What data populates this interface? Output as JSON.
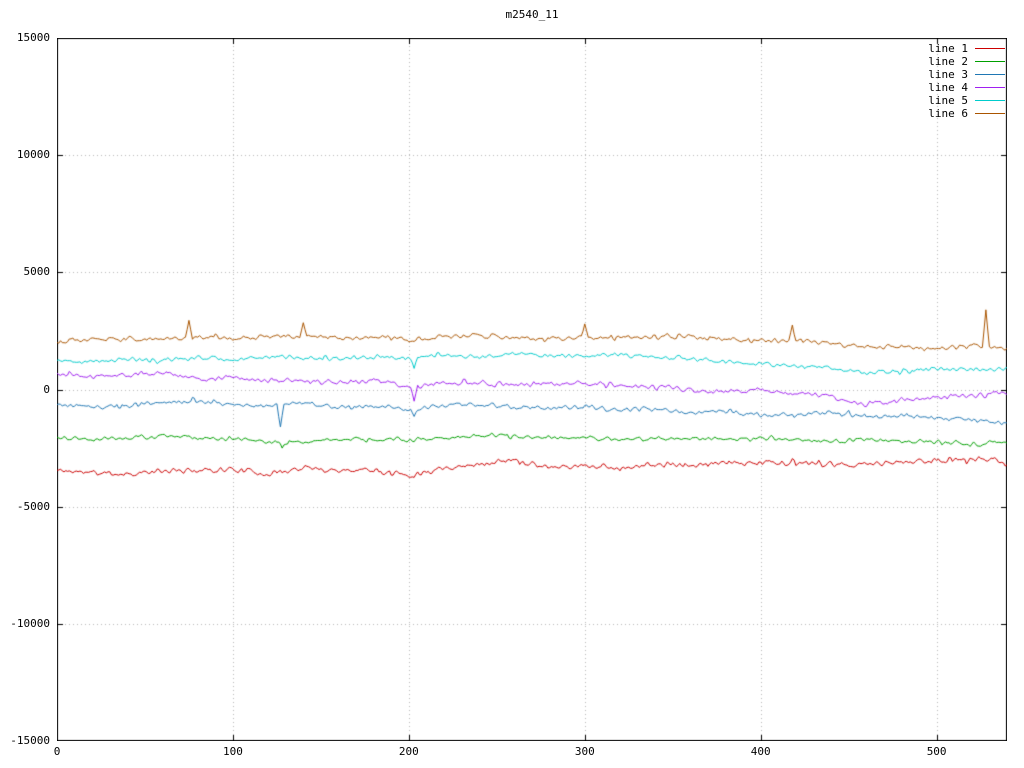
{
  "chart_data": {
    "type": "line",
    "title": "m2540_11",
    "xlabel": "",
    "ylabel": "",
    "xlim": [
      0,
      540
    ],
    "ylim": [
      -15000,
      15000
    ],
    "xticks": [
      0,
      100,
      200,
      300,
      400,
      500
    ],
    "yticks": [
      -15000,
      -10000,
      -5000,
      0,
      5000,
      10000,
      15000
    ],
    "grid": true,
    "grid_style": "dotted",
    "grid_color": "#b8b8b8",
    "border_color": "#000000",
    "background": "#ffffff",
    "legend_position": "top-right",
    "anchor_x_step": 20,
    "series": [
      {
        "name": "line 1",
        "color": "#cc0000",
        "seed": 11,
        "noise": 140,
        "anchors": [
          -3450,
          -3550,
          -3600,
          -3500,
          -3450,
          -3400,
          -3600,
          -3350,
          -3450,
          -3400,
          -3650,
          -3300,
          -3200,
          -3000,
          -3300,
          -3250,
          -3350,
          -3200,
          -3250,
          -3150,
          -3100,
          -3150,
          -3250,
          -3200,
          -3100,
          -3050,
          -2950,
          -3050
        ],
        "spikes": [
          {
            "x": 203,
            "v": -3750
          }
        ]
      },
      {
        "name": "line 2",
        "color": "#00a000",
        "seed": 22,
        "noise": 110,
        "anchors": [
          -2050,
          -2100,
          -2050,
          -2000,
          -2050,
          -2100,
          -2200,
          -2250,
          -2150,
          -2100,
          -2150,
          -2050,
          -1950,
          -2000,
          -2100,
          -2050,
          -2150,
          -2100,
          -2050,
          -2150,
          -2100,
          -2150,
          -2200,
          -2150,
          -2250,
          -2200,
          -2350,
          -2250
        ],
        "spikes": [
          {
            "x": 128,
            "v": -2500
          }
        ]
      },
      {
        "name": "line 3",
        "color": "#1f77b4",
        "seed": 33,
        "noise": 120,
        "anchors": [
          -650,
          -750,
          -700,
          -550,
          -500,
          -650,
          -700,
          -600,
          -750,
          -700,
          -900,
          -700,
          -650,
          -750,
          -800,
          -700,
          -900,
          -850,
          -1000,
          -950,
          -1100,
          -1050,
          -1000,
          -1150,
          -1100,
          -1250,
          -1300,
          -1450
        ],
        "spikes": [
          {
            "x": 127,
            "v": -1600
          },
          {
            "x": 203,
            "v": -1150
          }
        ]
      },
      {
        "name": "line 4",
        "color": "#a020f0",
        "seed": 44,
        "noise": 130,
        "anchors": [
          650,
          550,
          600,
          700,
          450,
          500,
          400,
          350,
          300,
          400,
          150,
          250,
          300,
          200,
          250,
          300,
          150,
          100,
          0,
          -100,
          -50,
          -150,
          -300,
          -650,
          -500,
          -350,
          -250,
          -150
        ],
        "spikes": [
          {
            "x": 203,
            "v": -500
          }
        ]
      },
      {
        "name": "line 5",
        "color": "#00cccc",
        "seed": 55,
        "noise": 110,
        "anchors": [
          1250,
          1200,
          1300,
          1250,
          1350,
          1300,
          1400,
          1350,
          1300,
          1400,
          1350,
          1450,
          1400,
          1500,
          1450,
          1400,
          1500,
          1350,
          1300,
          1200,
          1100,
          1000,
          900,
          700,
          800,
          850,
          900,
          850
        ],
        "spikes": [
          {
            "x": 203,
            "v": 900
          }
        ]
      },
      {
        "name": "line 6",
        "color": "#aa5500",
        "seed": 66,
        "noise": 120,
        "anchors": [
          2100,
          2150,
          2200,
          2150,
          2250,
          2200,
          2250,
          2300,
          2200,
          2250,
          2150,
          2250,
          2300,
          2200,
          2150,
          2250,
          2200,
          2300,
          2250,
          2150,
          2100,
          2050,
          1950,
          1850,
          1800,
          1750,
          1850,
          1700
        ],
        "spikes": [
          {
            "x": 75,
            "v": 2950
          },
          {
            "x": 140,
            "v": 2850
          },
          {
            "x": 300,
            "v": 2800
          },
          {
            "x": 418,
            "v": 2750
          },
          {
            "x": 528,
            "v": 3400
          }
        ]
      }
    ]
  }
}
